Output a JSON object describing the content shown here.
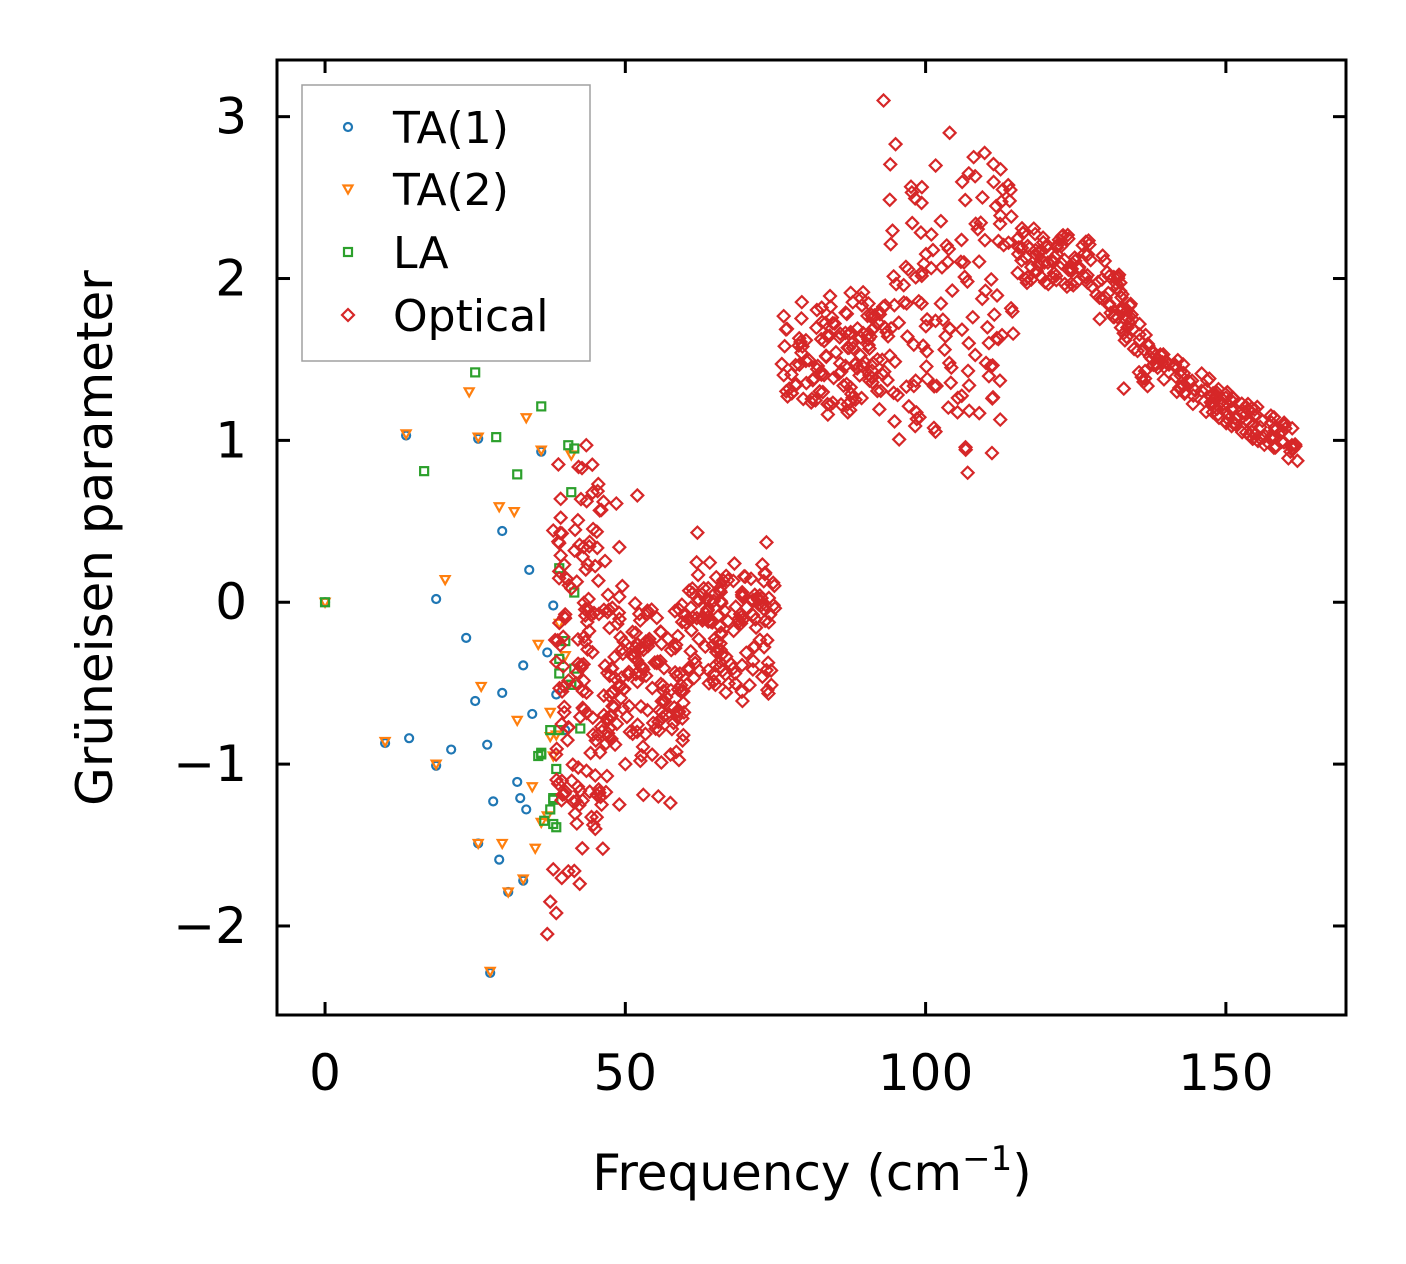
{
  "chart_data": {
    "type": "scatter",
    "title": "",
    "xlabel": "Frequency (cm",
    "xlabel_sup": "−1",
    "xlabel_end": ")",
    "ylabel": "Grüneisen parameter",
    "xlim": [
      -8,
      170
    ],
    "ylim": [
      -2.55,
      3.35
    ],
    "xticks": [
      0,
      50,
      100,
      150
    ],
    "xtick_labels": [
      "0",
      "50",
      "100",
      "150"
    ],
    "yticks": [
      -2,
      -1,
      0,
      1,
      2,
      3
    ],
    "ytick_labels": [
      "−2",
      "−1",
      "0",
      "1",
      "2",
      "3"
    ],
    "grid": false,
    "legend_position": "top-left",
    "series": [
      {
        "name": "TA(1)",
        "marker": "circle",
        "color": "#1f77b4",
        "points": [
          [
            0,
            0
          ],
          [
            10,
            -0.87
          ],
          [
            13.5,
            1.03
          ],
          [
            14,
            -0.84
          ],
          [
            18.5,
            0.02
          ],
          [
            18.5,
            -1.01
          ],
          [
            21,
            -0.91
          ],
          [
            23.5,
            -0.22
          ],
          [
            25,
            -0.61
          ],
          [
            25.5,
            1.01
          ],
          [
            25.5,
            -1.49
          ],
          [
            27,
            -0.88
          ],
          [
            27.5,
            -2.29
          ],
          [
            28,
            -1.23
          ],
          [
            29,
            -1.59
          ],
          [
            29.5,
            0.44
          ],
          [
            29.5,
            -0.56
          ],
          [
            30.5,
            -1.79
          ],
          [
            32,
            -1.11
          ],
          [
            32.5,
            -1.21
          ],
          [
            33,
            -0.39
          ],
          [
            33,
            -1.72
          ],
          [
            33.5,
            -1.28
          ],
          [
            34,
            0.2
          ],
          [
            34.5,
            -0.69
          ],
          [
            36,
            0.93
          ],
          [
            37,
            -0.31
          ],
          [
            38,
            -0.02
          ],
          [
            38.5,
            -0.57
          ],
          [
            40,
            -0.79
          ]
        ]
      },
      {
        "name": "TA(2)",
        "marker": "triangle-down",
        "color": "#ff7f0e",
        "points": [
          [
            0,
            0
          ],
          [
            10,
            -0.86
          ],
          [
            13.5,
            1.04
          ],
          [
            18.5,
            -1.0
          ],
          [
            20,
            0.14
          ],
          [
            24,
            1.3
          ],
          [
            25.5,
            1.02
          ],
          [
            25.5,
            -1.49
          ],
          [
            26,
            -0.52
          ],
          [
            27.5,
            -2.28
          ],
          [
            29,
            0.59
          ],
          [
            29.5,
            -1.49
          ],
          [
            30.5,
            -1.79
          ],
          [
            31.5,
            0.56
          ],
          [
            32,
            -0.73
          ],
          [
            33,
            -1.71
          ],
          [
            33.5,
            1.14
          ],
          [
            34.5,
            -1.14
          ],
          [
            35,
            -1.52
          ],
          [
            35.5,
            -0.26
          ],
          [
            36,
            0.94
          ],
          [
            36,
            -1.36
          ],
          [
            37,
            -1.32
          ],
          [
            37.5,
            -0.68
          ],
          [
            37.5,
            -0.83
          ],
          [
            38,
            -0.95
          ],
          [
            38.5,
            -0.82
          ],
          [
            39,
            -0.13
          ],
          [
            40,
            -0.33
          ],
          [
            41,
            0.91
          ]
        ]
      },
      {
        "name": "LA",
        "marker": "square",
        "color": "#2ca02c",
        "points": [
          [
            0,
            0
          ],
          [
            16.5,
            0.81
          ],
          [
            25,
            1.42
          ],
          [
            28.5,
            1.02
          ],
          [
            32,
            0.79
          ],
          [
            36,
            1.21
          ],
          [
            36,
            -0.93
          ],
          [
            35.5,
            -0.95
          ],
          [
            36.5,
            -1.35
          ],
          [
            37.5,
            -0.79
          ],
          [
            37.5,
            -1.28
          ],
          [
            38,
            -1.21
          ],
          [
            38,
            -1.37
          ],
          [
            38.5,
            -1.03
          ],
          [
            38.5,
            -1.39
          ],
          [
            39,
            0.21
          ],
          [
            39,
            -0.35
          ],
          [
            39,
            -0.44
          ],
          [
            39,
            -0.79
          ],
          [
            40,
            -0.24
          ],
          [
            40.5,
            0.97
          ],
          [
            41,
            0.68
          ],
          [
            41,
            -0.51
          ],
          [
            41.5,
            0.95
          ],
          [
            41.5,
            -0.41
          ],
          [
            41.5,
            0.06
          ],
          [
            42.5,
            -0.78
          ],
          [
            38,
            -1.22
          ],
          [
            41,
            -0.51
          ],
          [
            36,
            -0.94
          ]
        ]
      },
      {
        "name": "Optical",
        "marker": "diamond",
        "color": "#d62728",
        "generated": {
          "seed": 7,
          "count": 980,
          "scatter_points": [
            [
              37,
              -2.05
            ],
            [
              37.5,
              -1.85
            ],
            [
              38.5,
              -1.92
            ],
            [
              38,
              -1.65
            ],
            [
              41.5,
              -1.66
            ],
            [
              43.5,
              0.97
            ],
            [
              44.5,
              0.85
            ],
            [
              45.5,
              0.73
            ],
            [
              46,
              0.57
            ],
            [
              48.5,
              0.61
            ],
            [
              52,
              0.66
            ],
            [
              49,
              0.34
            ],
            [
              49.5,
              0.1
            ],
            [
              45,
              -1.4
            ],
            [
              49,
              -1.25
            ],
            [
              53,
              -1.19
            ],
            [
              55.5,
              -1.2
            ],
            [
              57.5,
              -1.24
            ],
            [
              62,
              0.43
            ],
            [
              73.5,
              0.37
            ],
            [
              69.5,
              -0.61
            ],
            [
              50,
              -1.0
            ],
            [
              52.5,
              -0.98
            ],
            [
              56,
              -0.99
            ],
            [
              45,
              -1.07
            ],
            [
              60.5,
              -0.42
            ],
            [
              65,
              -0.51
            ]
          ],
          "bands": [
            {
              "x": [
                38,
                47
              ],
              "y_top": 1.0,
              "y_bottom": -1.8
            },
            {
              "x": [
                47,
                60
              ],
              "y_top": 0.1,
              "y_bottom": -1.0
            },
            {
              "x": [
                60,
                75
              ],
              "y_top": 0.3,
              "y_bottom": -0.6
            },
            {
              "x": [
                76,
                94
              ],
              "y_top": 1.95,
              "y_bottom": 1.1
            },
            {
              "x": [
                94,
                115
              ],
              "y_top": 2.85,
              "y_bottom": 0.85
            },
            {
              "x": [
                115,
                137
              ],
              "y_top": 2.25,
              "y_bottom": 1.3
            },
            {
              "x": [
                137,
                162
              ],
              "y_top": 1.55,
              "y_bottom": 0.95
            }
          ],
          "extras": [
            [
              93,
              3.1
            ],
            [
              95,
              2.83
            ],
            [
              104,
              2.9
            ],
            [
              108,
              2.75
            ],
            [
              114,
              2.48
            ],
            [
              107,
              0.8
            ],
            [
              133,
              1.32
            ],
            [
              129,
              1.75
            ],
            [
              161,
              0.97
            ]
          ]
        }
      }
    ]
  }
}
